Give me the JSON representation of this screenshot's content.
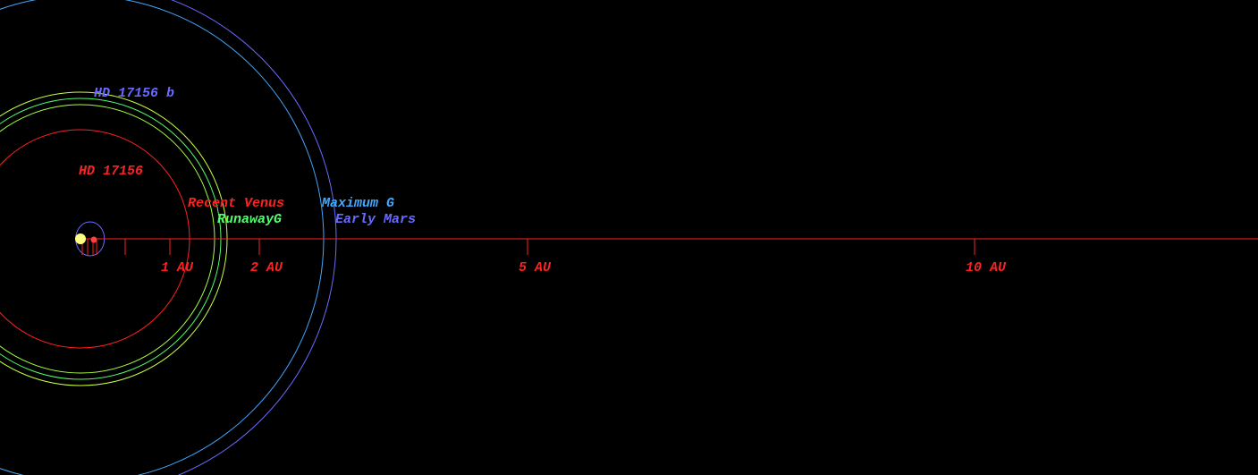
{
  "star": {
    "name": "HD 17156",
    "color": "#ff2020"
  },
  "planet": {
    "name": "HD 17156 b",
    "color": "#6a6aff",
    "semi_major_au": 0.16,
    "eccentricity": 0.67
  },
  "zones": [
    {
      "name": "Recent Venus",
      "color": "#ff2020",
      "radius_au": 1.22
    },
    {
      "name": "RunawayG",
      "color": "#50ff70",
      "radius_au": 1.57
    },
    {
      "name": "Maximum G",
      "color": "#40a8ff",
      "radius_au": 2.72
    },
    {
      "name": "Early Mars",
      "color": "#6a6aff",
      "radius_au": 2.86
    }
  ],
  "extra_orbits": [
    {
      "color": "#a8ff40",
      "radius_au": 1.5
    },
    {
      "color": "#c8ff40",
      "radius_au": 1.64
    }
  ],
  "axis": {
    "color": "#ff2020",
    "ticks": [
      {
        "value": 1,
        "label": "1 AU"
      },
      {
        "value": 2,
        "label": "2 AU"
      },
      {
        "value": 5,
        "label": "5 AU"
      },
      {
        "value": 10,
        "label": "10 AU"
      }
    ]
  }
}
